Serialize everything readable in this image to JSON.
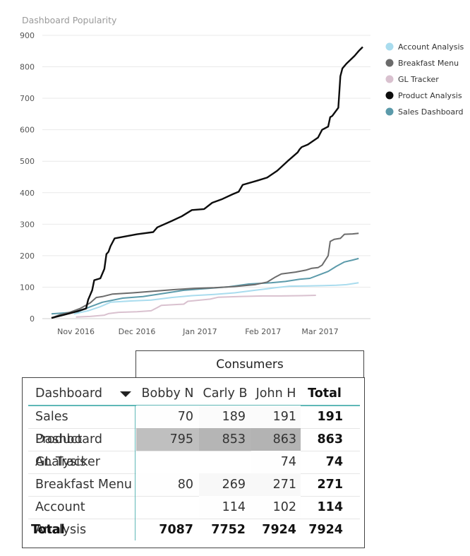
{
  "chart_data": {
    "type": "line",
    "title": "Dashboard Popularity",
    "xlabel": "",
    "ylabel": "",
    "ylim": [
      0,
      900
    ],
    "yticks": [
      0,
      100,
      200,
      300,
      400,
      500,
      600,
      700,
      800,
      900
    ],
    "xlim": [
      "2016-10-20",
      "2017-03-22"
    ],
    "xticks": [
      {
        "date": "2016-11-01",
        "label": "Nov 2016"
      },
      {
        "date": "2016-12-01",
        "label": "Dec 2016"
      },
      {
        "date": "2017-01-01",
        "label": "Jan 2017"
      },
      {
        "date": "2017-02-01",
        "label": "Feb 2017"
      },
      {
        "date": "2017-03-01",
        "label": "Mar 2017"
      }
    ],
    "grid": true,
    "legend_position": "right",
    "series": [
      {
        "name": "Account Analysis",
        "color": "#a9dcee",
        "points": [
          [
            "2016-10-31",
            15
          ],
          [
            "2016-11-07",
            25
          ],
          [
            "2016-11-13",
            38
          ],
          [
            "2016-11-18",
            52
          ],
          [
            "2016-11-28",
            56
          ],
          [
            "2016-12-08",
            59
          ],
          [
            "2016-12-18",
            67
          ],
          [
            "2016-12-28",
            73
          ],
          [
            "2017-01-08",
            77
          ],
          [
            "2017-01-18",
            82
          ],
          [
            "2017-01-28",
            90
          ],
          [
            "2017-02-07",
            98
          ],
          [
            "2017-02-14",
            103
          ],
          [
            "2017-02-23",
            104
          ],
          [
            "2017-03-03",
            105
          ],
          [
            "2017-03-09",
            106
          ],
          [
            "2017-03-14",
            108
          ],
          [
            "2017-03-20",
            114
          ]
        ]
      },
      {
        "name": "Breakfast Menu",
        "color": "#6b6b6b",
        "points": [
          [
            "2016-10-20",
            2
          ],
          [
            "2016-10-24",
            12
          ],
          [
            "2016-10-29",
            20
          ],
          [
            "2016-11-03",
            32
          ],
          [
            "2016-11-08",
            50
          ],
          [
            "2016-11-11",
            67
          ],
          [
            "2016-11-14",
            70
          ],
          [
            "2016-11-19",
            78
          ],
          [
            "2016-11-29",
            82
          ],
          [
            "2016-12-09",
            87
          ],
          [
            "2016-12-19",
            92
          ],
          [
            "2016-12-29",
            96
          ],
          [
            "2017-01-08",
            98
          ],
          [
            "2017-01-18",
            102
          ],
          [
            "2017-01-28",
            108
          ],
          [
            "2017-02-03",
            116
          ],
          [
            "2017-02-07",
            132
          ],
          [
            "2017-02-10",
            142
          ],
          [
            "2017-02-17",
            148
          ],
          [
            "2017-02-22",
            154
          ],
          [
            "2017-02-25",
            160
          ],
          [
            "2017-02-28",
            162
          ],
          [
            "2017-03-02",
            170
          ],
          [
            "2017-03-05",
            200
          ],
          [
            "2017-03-06",
            245
          ],
          [
            "2017-03-08",
            252
          ],
          [
            "2017-03-11",
            255
          ],
          [
            "2017-03-13",
            268
          ],
          [
            "2017-03-17",
            269
          ],
          [
            "2017-03-20",
            271
          ]
        ]
      },
      {
        "name": "GL Tracker",
        "color": "#d9c1cf",
        "points": [
          [
            "2016-11-01",
            5
          ],
          [
            "2016-11-08",
            7
          ],
          [
            "2016-11-15",
            11
          ],
          [
            "2016-11-17",
            16
          ],
          [
            "2016-11-22",
            20
          ],
          [
            "2016-12-01",
            22
          ],
          [
            "2016-12-08",
            25
          ],
          [
            "2016-12-11",
            35
          ],
          [
            "2016-12-13",
            42
          ],
          [
            "2016-12-24",
            46
          ],
          [
            "2016-12-26",
            55
          ],
          [
            "2017-01-06",
            62
          ],
          [
            "2017-01-10",
            68
          ],
          [
            "2017-01-20",
            70
          ],
          [
            "2017-02-01",
            72
          ],
          [
            "2017-02-10",
            72
          ],
          [
            "2017-02-20",
            73
          ],
          [
            "2017-02-27",
            74
          ]
        ]
      },
      {
        "name": "Product Analysis",
        "color": "#0d0d0d",
        "points": [
          [
            "2016-10-20",
            2
          ],
          [
            "2016-10-26",
            12
          ],
          [
            "2016-11-01",
            22
          ],
          [
            "2016-11-06",
            32
          ],
          [
            "2016-11-07",
            60
          ],
          [
            "2016-11-09",
            90
          ],
          [
            "2016-11-10",
            122
          ],
          [
            "2016-11-13",
            128
          ],
          [
            "2016-11-15",
            158
          ],
          [
            "2016-11-16",
            205
          ],
          [
            "2016-11-17",
            212
          ],
          [
            "2016-11-18",
            230
          ],
          [
            "2016-11-20",
            255
          ],
          [
            "2016-12-01",
            268
          ],
          [
            "2016-12-09",
            275
          ],
          [
            "2016-12-11",
            290
          ],
          [
            "2016-12-18",
            310
          ],
          [
            "2016-12-23",
            325
          ],
          [
            "2016-12-28",
            345
          ],
          [
            "2017-01-03",
            348
          ],
          [
            "2017-01-07",
            368
          ],
          [
            "2017-01-12",
            380
          ],
          [
            "2017-01-17",
            395
          ],
          [
            "2017-01-20",
            403
          ],
          [
            "2017-01-22",
            425
          ],
          [
            "2017-01-29",
            438
          ],
          [
            "2017-02-03",
            448
          ],
          [
            "2017-02-08",
            470
          ],
          [
            "2017-02-13",
            500
          ],
          [
            "2017-02-18",
            528
          ],
          [
            "2017-02-19",
            538
          ],
          [
            "2017-02-20",
            545
          ],
          [
            "2017-02-23",
            553
          ],
          [
            "2017-02-28",
            575
          ],
          [
            "2017-03-02",
            600
          ],
          [
            "2017-03-05",
            610
          ],
          [
            "2017-03-06",
            640
          ],
          [
            "2017-03-07",
            644
          ],
          [
            "2017-03-10",
            670
          ],
          [
            "2017-03-11",
            770
          ],
          [
            "2017-03-12",
            795
          ],
          [
            "2017-03-14",
            810
          ],
          [
            "2017-03-18",
            835
          ],
          [
            "2017-03-20",
            850
          ],
          [
            "2017-03-22",
            863
          ]
        ]
      },
      {
        "name": "Sales Dashboard",
        "color": "#5b9aaa",
        "points": [
          [
            "2016-10-20",
            15
          ],
          [
            "2016-10-26",
            18
          ],
          [
            "2016-11-02",
            22
          ],
          [
            "2016-11-07",
            35
          ],
          [
            "2016-11-14",
            52
          ],
          [
            "2016-11-24",
            65
          ],
          [
            "2016-12-04",
            70
          ],
          [
            "2016-12-14",
            80
          ],
          [
            "2016-12-24",
            90
          ],
          [
            "2017-01-05",
            96
          ],
          [
            "2017-01-15",
            101
          ],
          [
            "2017-01-25",
            110
          ],
          [
            "2017-02-05",
            114
          ],
          [
            "2017-02-12",
            118
          ],
          [
            "2017-02-19",
            125
          ],
          [
            "2017-02-24",
            128
          ],
          [
            "2017-03-01",
            140
          ],
          [
            "2017-03-05",
            150
          ],
          [
            "2017-03-09",
            166
          ],
          [
            "2017-03-13",
            180
          ],
          [
            "2017-03-17",
            186
          ],
          [
            "2017-03-20",
            191
          ]
        ]
      }
    ]
  },
  "matrix": {
    "column_group_label": "Consumers",
    "headers": [
      "Dashboard",
      "Bobby N",
      "Carly B",
      "John H",
      "Total"
    ],
    "rows": [
      {
        "name": "Sales Dashboard",
        "values": [
          "70",
          "189",
          "191",
          "191"
        ]
      },
      {
        "name": "Product Analysis",
        "values": [
          "795",
          "853",
          "863",
          "863"
        ]
      },
      {
        "name": "GL Tracker",
        "values": [
          "",
          "",
          "74",
          "74"
        ]
      },
      {
        "name": "Breakfast Menu",
        "values": [
          "80",
          "269",
          "271",
          "271"
        ]
      },
      {
        "name": "Account Analysis",
        "values": [
          "",
          "114",
          "102",
          "114"
        ]
      }
    ],
    "total_row": {
      "name": "Total",
      "values": [
        "7087",
        "7752",
        "7924",
        "7924"
      ]
    },
    "heat_color_max": "#b3b3b3",
    "heat_color_min": "#ffffff",
    "header_accent_color": "#5fb8b7"
  }
}
